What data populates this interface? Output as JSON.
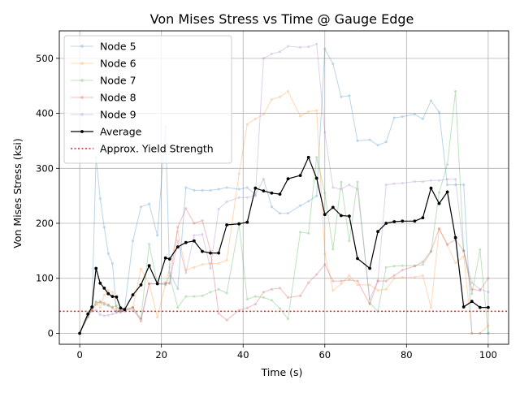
{
  "chart_data": {
    "type": "line",
    "title": "Von Mises Stress vs Time @ Gauge Edge",
    "xlabel": "Time (s)",
    "ylabel": "Von Mises Stress (ksi)",
    "xlim": [
      -5,
      105
    ],
    "ylim": [
      -20,
      550
    ],
    "xticks": [
      0,
      20,
      40,
      60,
      80,
      100
    ],
    "yticks": [
      0,
      100,
      200,
      300,
      400,
      500
    ],
    "grid": true,
    "legend_position": "upper-left",
    "x": [
      0,
      2,
      3,
      4,
      5,
      6,
      7,
      8,
      9,
      10,
      11,
      13,
      15,
      17,
      19,
      21,
      22,
      24,
      26,
      28,
      30,
      32,
      34,
      36,
      39,
      41,
      43,
      45,
      47,
      49,
      51,
      54,
      56,
      58,
      60,
      62,
      64,
      66,
      68,
      71,
      73,
      75,
      77,
      79,
      82,
      84,
      86,
      88,
      90,
      92,
      94,
      96,
      98,
      100
    ],
    "series": [
      {
        "name": "Node 5",
        "color": "#1f77b4",
        "alpha": 0.3,
        "linewidth": 1,
        "values": [
          0,
          30,
          45,
          320,
          245,
          193,
          145,
          127,
          40,
          42,
          45,
          168,
          230,
          235,
          178,
          375,
          110,
          81,
          265,
          260,
          260,
          260,
          262,
          265,
          262,
          265,
          252,
          280,
          230,
          218,
          218,
          232,
          240,
          250,
          517,
          490,
          430,
          432,
          350,
          352,
          342,
          348,
          392,
          394,
          398,
          390,
          423,
          402,
          270,
          270,
          270,
          0,
          0,
          0
        ]
      },
      {
        "name": "Node 6",
        "color": "#ff7f0e",
        "alpha": 0.3,
        "linewidth": 1,
        "values": [
          0,
          35,
          42,
          57,
          47,
          70,
          78,
          75,
          45,
          42,
          45,
          47,
          117,
          90,
          29,
          90,
          120,
          185,
          115,
          120,
          125,
          127,
          127,
          133,
          290,
          380,
          390,
          398,
          425,
          430,
          440,
          395,
          403,
          405,
          145,
          78,
          90,
          105,
          88,
          88,
          78,
          80,
          100,
          102,
          102,
          105,
          47,
          190,
          160,
          128,
          140,
          0,
          0,
          14
        ]
      },
      {
        "name": "Node 7",
        "color": "#2ca02c",
        "alpha": 0.3,
        "linewidth": 1,
        "values": [
          0,
          30,
          45,
          57,
          56,
          52,
          50,
          48,
          50,
          38,
          42,
          47,
          27,
          162,
          90,
          88,
          105,
          47,
          67,
          67,
          68,
          75,
          80,
          73,
          198,
          62,
          67,
          65,
          60,
          45,
          26,
          184,
          182,
          320,
          255,
          153,
          275,
          168,
          275,
          55,
          40,
          120,
          122,
          123,
          123,
          125,
          148,
          256,
          307,
          440,
          150,
          72,
          152,
          0
        ]
      },
      {
        "name": "Node 8",
        "color": "#d62728",
        "alpha": 0.3,
        "linewidth": 1,
        "values": [
          0,
          30,
          42,
          52,
          58,
          55,
          52,
          46,
          40,
          40,
          40,
          47,
          22,
          90,
          90,
          92,
          92,
          193,
          227,
          200,
          205,
          150,
          36,
          24,
          42,
          46,
          53,
          75,
          80,
          82,
          65,
          68,
          92,
          107,
          125,
          95,
          95,
          97,
          95,
          53,
          95,
          95,
          105,
          115,
          122,
          130,
          150,
          190,
          162,
          170,
          150,
          80,
          78,
          100
        ]
      },
      {
        "name": "Node 9",
        "color": "#9467bd",
        "alpha": 0.3,
        "linewidth": 1,
        "values": [
          0,
          38,
          40,
          42,
          34,
          32,
          33,
          35,
          37,
          40,
          45,
          42,
          26,
          90,
          90,
          90,
          90,
          168,
          110,
          178,
          180,
          118,
          226,
          239,
          247,
          247,
          250,
          500,
          508,
          512,
          522,
          520,
          521,
          526,
          365,
          265,
          262,
          270,
          262,
          62,
          96,
          270,
          272,
          273,
          276,
          276,
          278,
          278,
          280,
          280,
          150,
          92,
          80,
          75
        ]
      },
      {
        "name": "Average",
        "color": "#000000",
        "alpha": 1.0,
        "linewidth": 1.2,
        "marker": "dot",
        "values": [
          0,
          35,
          48,
          118,
          91,
          82,
          72,
          67,
          66,
          46,
          43,
          70,
          88,
          123,
          90,
          137,
          135,
          157,
          165,
          168,
          149,
          146,
          146,
          197,
          199,
          202,
          264,
          259,
          255,
          253,
          281,
          287,
          320,
          282,
          216,
          229,
          214,
          213,
          136,
          118,
          185,
          200,
          203,
          204,
          204,
          210,
          264,
          236,
          257,
          174,
          48,
          58,
          47,
          47
        ]
      }
    ],
    "reference_line": {
      "name": "Approx. Yield Strength",
      "y": 40,
      "color": "#d62728",
      "style": "dotted"
    }
  }
}
